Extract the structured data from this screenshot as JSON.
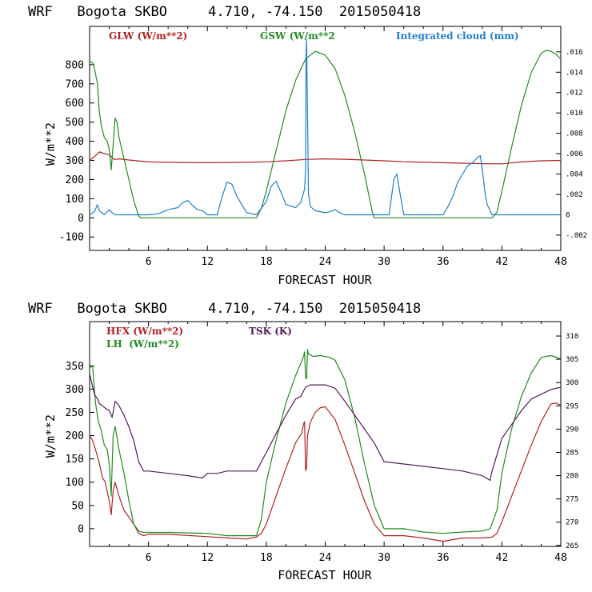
{
  "chart_data": [
    {
      "type": "line",
      "title": "WRF   Bogota SKBO     4.710, -74.150  2015050418",
      "xlabel": "FORECAST HOUR",
      "ylabel": "W/m**2",
      "xlim": [
        0,
        48
      ],
      "ylim": [
        -170,
        1000
      ],
      "xticks": [
        6,
        12,
        18,
        24,
        30,
        36,
        42,
        48
      ],
      "yticks": [
        -100,
        0,
        100,
        200,
        300,
        400,
        500,
        600,
        700,
        800
      ],
      "y2lim": [
        -0.0035,
        0.0185
      ],
      "y2ticks": [
        -0.002,
        0,
        0.002,
        0.004,
        0.006,
        0.008,
        0.01,
        0.012,
        0.014,
        0.016
      ],
      "y2ticklabels": [
        "-.002",
        "0",
        ".002",
        ".004",
        ".006",
        ".008",
        ".010",
        ".012",
        ".014",
        ".016"
      ],
      "series": [
        {
          "name": "GLW (W/m**2)",
          "color": "#b22222",
          "axis": "left",
          "x": [
            0,
            0.5,
            1,
            1.5,
            2,
            2.3,
            2.5,
            3,
            4,
            6,
            8,
            12,
            16,
            18,
            20,
            22,
            24,
            26,
            28,
            30,
            32,
            36,
            40,
            42,
            44,
            46,
            48
          ],
          "y": [
            300,
            320,
            345,
            335,
            330,
            315,
            305,
            308,
            302,
            292,
            290,
            288,
            290,
            293,
            298,
            305,
            308,
            306,
            302,
            298,
            293,
            288,
            283,
            282,
            292,
            298,
            300
          ]
        },
        {
          "name": "GSW (W/m**2",
          "color": "#228b22",
          "axis": "left",
          "x": [
            0,
            0.3,
            0.5,
            0.8,
            1,
            1.2,
            1.5,
            1.8,
            2,
            2.2,
            2.4,
            2.6,
            2.8,
            3,
            3.5,
            4,
            4.5,
            5,
            5.2,
            17,
            17.5,
            18,
            19,
            20,
            21,
            22,
            23,
            24,
            25,
            26,
            27,
            28,
            28.8,
            29,
            41,
            41.5,
            42,
            43,
            44,
            45,
            46,
            46.5,
            47,
            47.5,
            48
          ],
          "y": [
            820,
            810,
            780,
            700,
            550,
            480,
            420,
            400,
            360,
            250,
            380,
            520,
            500,
            420,
            310,
            200,
            90,
            10,
            0,
            0,
            50,
            140,
            350,
            560,
            720,
            830,
            870,
            850,
            780,
            640,
            450,
            230,
            30,
            0,
            0,
            30,
            140,
            370,
            590,
            760,
            860,
            875,
            870,
            855,
            830
          ]
        },
        {
          "name": "Integrated cloud (mm)",
          "color": "#1f7fd0",
          "axis": "right",
          "x": [
            0,
            0.5,
            0.8,
            1,
            1.5,
            2,
            2.3,
            2.6,
            3,
            6,
            7,
            8,
            9,
            9.5,
            10,
            10.5,
            11,
            11.5,
            12,
            13,
            13.5,
            14,
            14.5,
            15,
            16,
            17,
            18,
            18.5,
            19,
            19.5,
            20,
            21,
            21.5,
            21.9,
            22,
            22.05,
            22.1,
            22.2,
            22.3,
            22.5,
            23,
            24,
            24.5,
            25,
            25.5,
            26,
            30.5,
            31,
            31.3,
            31.6,
            32,
            36,
            36.5,
            37,
            37.5,
            38,
            38.5,
            39,
            39.5,
            39.8,
            40,
            40.3,
            40.5,
            41,
            48
          ],
          "y": [
            0,
            0.0003,
            0.001,
            0.0004,
            0,
            0.0005,
            0.0002,
            0,
            0,
            0,
            0.0001,
            0.0005,
            0.0007,
            0.0012,
            0.0014,
            0.0009,
            0.0005,
            0.0004,
            0,
            0,
            0.0018,
            0.0032,
            0.003,
            0.0018,
            0.0002,
            0,
            0.0013,
            0.0028,
            0.0033,
            0.0022,
            0.001,
            0.0007,
            0.0012,
            0.0025,
            0.0045,
            0.0157,
            0.0172,
            0.01,
            0.002,
            0.0008,
            0.0004,
            0.0002,
            0.0003,
            0.0005,
            0.0002,
            0,
            0,
            0.0035,
            0.004,
            0.0022,
            0,
            0,
            0.0008,
            0.0018,
            0.0032,
            0.004,
            0.0048,
            0.0051,
            0.0056,
            0.0058,
            0.0045,
            0.002,
            0.001,
            0,
            0
          ]
        }
      ]
    },
    {
      "type": "line",
      "title": "WRF   Bogota SKBO     4.710, -74.150  2015050418",
      "xlabel": "FORECAST HOUR",
      "ylabel": "W/m**2",
      "xlim": [
        0,
        48
      ],
      "ylim": [
        -38,
        445
      ],
      "xticks": [
        6,
        12,
        18,
        24,
        30,
        36,
        42,
        48
      ],
      "yticks": [
        0,
        50,
        100,
        150,
        200,
        250,
        300,
        350
      ],
      "y2lim": [
        264.8,
        313.1
      ],
      "y2ticks": [
        265,
        270,
        275,
        280,
        285,
        290,
        295,
        300,
        305,
        310
      ],
      "y2ticklabels": [
        "265",
        "270",
        "275",
        "280",
        "285",
        "290",
        "295",
        "300",
        "305",
        "310"
      ],
      "series": [
        {
          "name": "HFX (W/m**2)",
          "color": "#b22222",
          "axis": "left",
          "x": [
            0,
            0.3,
            0.6,
            1,
            1.3,
            1.6,
            2,
            2.2,
            2.4,
            2.6,
            3,
            3.5,
            4,
            4.5,
            5,
            5.5,
            6,
            8,
            12,
            14,
            16,
            17,
            17.5,
            18,
            19,
            20,
            21,
            21.6,
            21.8,
            21.9,
            22,
            22.1,
            22.2,
            22.5,
            23,
            23.5,
            24,
            25,
            26,
            27,
            28,
            29,
            30,
            32,
            34,
            36,
            38,
            40,
            41,
            41.5,
            42,
            43,
            44,
            45,
            46,
            47,
            47.5,
            48
          ],
          "y": [
            200,
            190,
            170,
            140,
            110,
            100,
            60,
            30,
            80,
            100,
            70,
            40,
            25,
            10,
            -10,
            -15,
            -12,
            -12,
            -17,
            -20,
            -22,
            -18,
            -10,
            10,
            70,
            130,
            185,
            205,
            225,
            230,
            125,
            130,
            200,
            230,
            250,
            260,
            262,
            235,
            180,
            120,
            60,
            10,
            -15,
            -15,
            -20,
            -27,
            -20,
            -20,
            -18,
            -10,
            15,
            70,
            125,
            180,
            230,
            268,
            270,
            265
          ]
        },
        {
          "name": "LH  (W/m**2)",
          "color": "#228b22",
          "axis": "left",
          "x": [
            0,
            0.3,
            0.6,
            0.9,
            1.2,
            1.5,
            1.8,
            2,
            2.2,
            2.4,
            2.6,
            3,
            3.5,
            4,
            4.5,
            5,
            5.5,
            6,
            8,
            12,
            14,
            16,
            17,
            17.5,
            18,
            19,
            20,
            21,
            21.6,
            21.8,
            21.9,
            22,
            22.1,
            22.2,
            22.3,
            22.8,
            23.5,
            24.5,
            25,
            26,
            27,
            28,
            29,
            30,
            32,
            34,
            36,
            38,
            40,
            40.8,
            41.5,
            42,
            43,
            44,
            45,
            46,
            47,
            48
          ],
          "y": [
            345,
            350,
            270,
            230,
            210,
            180,
            170,
            140,
            70,
            200,
            220,
            170,
            120,
            60,
            10,
            -5,
            -8,
            -8,
            -8,
            -10,
            -15,
            -15,
            -15,
            20,
            100,
            190,
            270,
            330,
            360,
            370,
            380,
            325,
            322,
            385,
            375,
            370,
            372,
            368,
            362,
            320,
            240,
            140,
            50,
            0,
            0,
            -7,
            -10,
            -7,
            -5,
            0,
            40,
            120,
            215,
            285,
            335,
            368,
            372,
            365
          ]
        },
        {
          "name": "TSK (K)",
          "color": "#551a5a",
          "axis": "right",
          "x": [
            0,
            0.2,
            0.5,
            0.8,
            1,
            1.3,
            1.6,
            2,
            2.3,
            2.6,
            3,
            3.5,
            4,
            4.5,
            5,
            5.5,
            6,
            8,
            10,
            11.5,
            12,
            13,
            14,
            16,
            17,
            18,
            19,
            20,
            21,
            21.5,
            22,
            22.5,
            24,
            25,
            26,
            27,
            28,
            29,
            30,
            32,
            34,
            36,
            38,
            40,
            40.8,
            41,
            41.5,
            42,
            43,
            44,
            45,
            46,
            47,
            48
          ],
          "y": [
            302,
            300,
            297.5,
            296.5,
            295.5,
            295,
            294.5,
            294,
            292.5,
            296,
            295,
            293,
            290.5,
            287.5,
            283,
            281,
            281,
            280.5,
            280,
            279.5,
            280.5,
            280.5,
            281,
            281,
            281,
            285,
            289,
            293,
            296.5,
            297,
            299,
            299.5,
            299.5,
            298.8,
            296,
            293,
            290,
            287,
            283,
            282.5,
            282,
            281.5,
            281,
            280,
            279,
            281,
            284.5,
            288,
            291,
            294,
            296.5,
            297.5,
            298.5,
            299
          ]
        }
      ]
    }
  ]
}
